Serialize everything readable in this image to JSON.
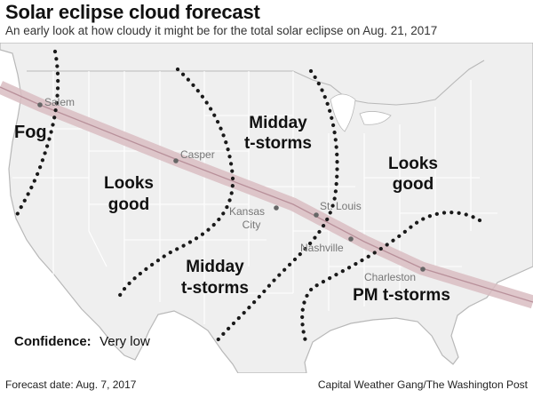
{
  "header": {
    "title": "Solar eclipse cloud forecast",
    "subtitle": "An early look at how cloudy it might be for the total solar eclipse on Aug. 21, 2017"
  },
  "map": {
    "colors": {
      "land": "#efefef",
      "land_border": "#b8b8b8",
      "state_lines": "#ffffff",
      "ocean": "#ffffff",
      "eclipse_path": "#d9bdc2",
      "eclipse_centerline": "#b8909a",
      "forecast_lines": "#1a1a1a",
      "cities": "#777777"
    },
    "cities": [
      {
        "name": "Salem"
      },
      {
        "name": "Casper"
      },
      {
        "name": "Kansas City",
        "line1": "Kansas",
        "line2": "City"
      },
      {
        "name": "St. Louis"
      },
      {
        "name": "Nashville"
      },
      {
        "name": "Charleston"
      }
    ],
    "regions": {
      "fog": "Fog",
      "looks_good_west_1": "Looks",
      "looks_good_west_2": "good",
      "midday_north_1": "Midday",
      "midday_north_2": "t-storms",
      "looks_good_east_1": "Looks",
      "looks_good_east_2": "good",
      "midday_south_1": "Midday",
      "midday_south_2": "t-storms",
      "pm_tstorms": "PM t-storms"
    },
    "confidence": {
      "label": "Confidence:",
      "value": "Very low"
    }
  },
  "footer": {
    "forecast_date": "Forecast date: Aug. 7, 2017",
    "credit": "Capital Weather Gang/The Washington Post"
  }
}
